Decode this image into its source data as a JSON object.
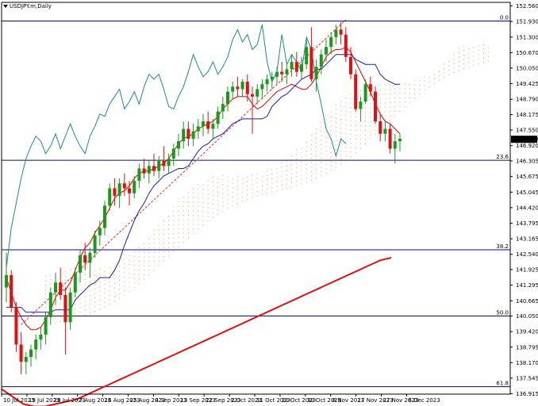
{
  "chart_data": {
    "type": "candlestick",
    "title": "USDJPY.m,Daily",
    "timeframe": "Daily",
    "symbol": "USDJPY.m",
    "ylim": [
      136.9,
      152.7
    ],
    "y_ticks": [
      "152.560",
      "151.930",
      "151.300",
      "150.670",
      "150.050",
      "149.425",
      "148.790",
      "148.175",
      "147.550",
      "146.920",
      "146.305",
      "145.675",
      "145.045",
      "144.420",
      "143.795",
      "143.165",
      "142.540",
      "141.925",
      "141.295",
      "140.665",
      "140.050",
      "139.420",
      "138.795",
      "138.170",
      "137.545",
      "136.915"
    ],
    "current_price": "147.178",
    "current_price_value": 147.178,
    "x_ticks": [
      "10 Jul 2023",
      "19 Jul 2023",
      "28 Jul 2023",
      "7 Aug 2023",
      "16 Aug 2023",
      "25 Aug 2023",
      "4 Sep 2023",
      "13 Sep 2023",
      "22 Sep 2023",
      "2 Oct 2023",
      "11 Oct 2023",
      "20 Oct 2023",
      "30 Oct 2023",
      "8 Nov 2023",
      "17 Nov 2023",
      "27 Nov 2023",
      "6 Dec 2023"
    ],
    "fibonacci": [
      {
        "label": "0.0",
        "value": 151.95
      },
      {
        "label": "23.6",
        "value": 146.33
      },
      {
        "label": "38.2",
        "value": 142.72
      },
      {
        "label": "50.0",
        "value": 140.05
      },
      {
        "label": "61.8",
        "value": 137.2
      }
    ],
    "candles": [
      [
        141.2,
        142.6,
        140.6,
        141.7
      ],
      [
        141.7,
        141.9,
        140.2,
        140.4
      ],
      [
        140.4,
        140.6,
        138.6,
        138.9
      ],
      [
        138.9,
        139.4,
        137.7,
        138.2
      ],
      [
        138.2,
        138.6,
        137.7,
        138.4
      ],
      [
        138.4,
        138.9,
        138.0,
        138.7
      ],
      [
        138.7,
        139.3,
        138.3,
        139.1
      ],
      [
        139.1,
        139.6,
        138.7,
        139.3
      ],
      [
        139.3,
        140.2,
        138.9,
        140.0
      ],
      [
        140.0,
        141.2,
        139.7,
        141.0
      ],
      [
        141.0,
        141.8,
        140.5,
        141.4
      ],
      [
        141.4,
        142.0,
        140.7,
        140.9
      ],
      [
        140.9,
        141.2,
        138.5,
        139.8
      ],
      [
        139.8,
        141.2,
        139.5,
        141.0
      ],
      [
        141.0,
        142.0,
        140.8,
        141.8
      ],
      [
        141.8,
        142.7,
        141.4,
        142.5
      ],
      [
        142.5,
        143.0,
        141.9,
        142.2
      ],
      [
        142.2,
        142.8,
        141.6,
        142.6
      ],
      [
        142.6,
        143.5,
        142.4,
        143.3
      ],
      [
        143.3,
        143.9,
        142.9,
        143.6
      ],
      [
        143.6,
        144.7,
        143.3,
        144.5
      ],
      [
        144.5,
        145.4,
        144.3,
        145.2
      ],
      [
        145.2,
        145.6,
        144.5,
        144.9
      ],
      [
        144.9,
        145.6,
        144.4,
        145.4
      ],
      [
        145.4,
        145.8,
        144.9,
        145.2
      ],
      [
        145.2,
        145.5,
        144.5,
        145.0
      ],
      [
        145.0,
        145.7,
        144.8,
        145.5
      ],
      [
        145.5,
        146.2,
        145.2,
        146.0
      ],
      [
        146.0,
        146.4,
        145.6,
        145.8
      ],
      [
        145.8,
        146.3,
        145.4,
        146.1
      ],
      [
        146.1,
        146.6,
        145.7,
        145.9
      ],
      [
        145.9,
        146.5,
        145.6,
        146.3
      ],
      [
        146.3,
        146.9,
        145.9,
        146.1
      ],
      [
        146.1,
        146.6,
        145.8,
        146.4
      ],
      [
        146.4,
        147.0,
        146.1,
        146.8
      ],
      [
        146.8,
        147.4,
        146.5,
        147.1
      ],
      [
        147.1,
        147.9,
        146.8,
        147.6
      ],
      [
        147.6,
        147.9,
        146.9,
        147.2
      ],
      [
        147.2,
        147.8,
        146.9,
        147.5
      ],
      [
        147.5,
        148.0,
        147.2,
        147.7
      ],
      [
        147.7,
        148.2,
        147.3,
        147.9
      ],
      [
        147.9,
        148.3,
        147.4,
        147.6
      ],
      [
        147.6,
        148.0,
        147.2,
        147.8
      ],
      [
        147.8,
        148.5,
        147.6,
        148.3
      ],
      [
        148.3,
        148.9,
        148.0,
        148.6
      ],
      [
        148.6,
        149.3,
        148.3,
        149.1
      ],
      [
        149.1,
        149.5,
        148.8,
        149.3
      ],
      [
        149.3,
        149.7,
        148.9,
        149.2
      ],
      [
        149.2,
        149.6,
        148.9,
        149.5
      ],
      [
        149.5,
        149.8,
        148.7,
        149.0
      ],
      [
        149.0,
        149.3,
        147.4,
        148.9
      ],
      [
        148.9,
        149.4,
        148.6,
        149.2
      ],
      [
        149.2,
        149.6,
        148.8,
        149.4
      ],
      [
        149.4,
        149.8,
        149.1,
        149.6
      ],
      [
        149.6,
        149.9,
        149.2,
        149.7
      ],
      [
        149.7,
        150.1,
        149.4,
        149.9
      ],
      [
        149.9,
        150.3,
        149.5,
        149.8
      ],
      [
        149.8,
        150.2,
        149.4,
        150.0
      ],
      [
        150.0,
        150.6,
        149.7,
        150.3
      ],
      [
        150.3,
        150.7,
        149.7,
        149.9
      ],
      [
        149.9,
        150.5,
        149.6,
        150.2
      ],
      [
        150.2,
        151.2,
        150.0,
        150.9
      ],
      [
        150.9,
        151.7,
        149.5,
        149.6
      ],
      [
        149.6,
        150.4,
        149.1,
        150.1
      ],
      [
        150.1,
        150.8,
        149.8,
        150.6
      ],
      [
        150.6,
        151.2,
        150.3,
        150.9
      ],
      [
        150.9,
        151.5,
        150.6,
        151.3
      ],
      [
        151.3,
        151.8,
        151.0,
        151.6
      ],
      [
        151.6,
        151.9,
        151.0,
        151.4
      ],
      [
        151.4,
        151.7,
        150.3,
        150.5
      ],
      [
        150.5,
        150.9,
        149.6,
        149.8
      ],
      [
        149.8,
        150.0,
        148.3,
        148.4
      ],
      [
        148.4,
        148.9,
        147.9,
        148.7
      ],
      [
        148.7,
        149.6,
        148.6,
        149.4
      ],
      [
        149.4,
        149.7,
        148.9,
        149.1
      ],
      [
        149.1,
        149.3,
        147.8,
        147.9
      ],
      [
        147.9,
        148.2,
        147.1,
        147.4
      ],
      [
        147.4,
        147.9,
        147.1,
        147.6
      ],
      [
        147.6,
        147.8,
        146.6,
        146.8
      ],
      [
        146.8,
        147.4,
        146.2,
        147.1
      ],
      [
        147.1,
        147.4,
        146.7,
        147.2
      ]
    ],
    "series": [
      {
        "name": "Tenkan-sen",
        "color": "#e00000",
        "values": [
          141.6,
          141.0,
          140.4,
          140.0,
          139.7,
          139.5,
          139.5,
          139.6,
          139.9,
          140.3,
          140.8,
          141.1,
          141.1,
          141.4,
          141.9,
          142.4,
          142.8,
          143.0,
          143.4,
          143.7,
          144.0,
          144.4,
          144.8,
          145.0,
          145.1,
          145.3,
          145.6,
          145.8,
          145.9,
          145.9,
          146.0,
          146.1,
          146.2,
          146.4,
          146.7,
          147.0,
          147.2,
          147.3,
          147.4,
          147.6,
          147.7,
          147.8,
          147.9,
          148.1,
          148.4,
          148.6,
          148.8,
          148.9,
          148.9,
          148.9,
          148.6,
          148.4,
          148.5,
          148.7,
          148.9,
          149.1,
          149.2,
          149.3,
          149.4,
          149.3,
          149.2,
          149.2,
          149.4,
          149.7,
          150.1,
          150.5,
          150.7,
          150.8,
          150.8,
          150.9,
          150.7,
          150.3,
          149.9,
          149.5,
          149.1,
          148.6,
          148.2,
          147.9,
          147.8,
          147.6,
          147.4
        ]
      },
      {
        "name": "Kijun-sen",
        "color": "#1a1ab0",
        "values": [
          140.4,
          140.4,
          140.4,
          140.4,
          140.2,
          140.2,
          140.2,
          140.2,
          140.2,
          140.2,
          140.3,
          140.3,
          140.3,
          140.3,
          140.7,
          140.9,
          141.1,
          141.3,
          141.4,
          141.6,
          141.6,
          141.6,
          141.9,
          142.3,
          142.9,
          143.4,
          143.9,
          144.3,
          144.6,
          145.0,
          145.3,
          145.5,
          145.7,
          145.8,
          145.9,
          146.0,
          146.0,
          146.1,
          146.4,
          146.7,
          146.9,
          147.0,
          147.2,
          147.3,
          147.4,
          147.6,
          147.8,
          147.9,
          148.0,
          148.0,
          148.0,
          148.0,
          148.0,
          148.1,
          148.5,
          148.7,
          148.9,
          149.0,
          149.2,
          149.4,
          149.6,
          149.7,
          149.8,
          150.0,
          150.0,
          150.2,
          150.4,
          150.6,
          150.6,
          150.6,
          150.6,
          150.4,
          150.3,
          150.2,
          150.2,
          150.2,
          149.8,
          149.6,
          149.5,
          149.4,
          149.4
        ]
      },
      {
        "name": "Chikou span",
        "color": "#1a8a8a",
        "values": [
          142.0,
          143.6,
          144.6,
          145.6,
          146.4,
          146.9,
          147.3,
          147.1,
          146.6,
          146.9,
          147.4,
          146.8,
          147.3,
          147.8,
          147.3,
          146.9,
          146.6,
          147.3,
          147.7,
          148.2,
          148.1,
          148.6,
          148.9,
          149.2,
          148.4,
          148.7,
          149.1,
          148.6,
          149.3,
          149.8,
          149.6,
          149.8,
          149.2,
          148.5,
          148.4,
          148.9,
          149.3,
          149.9,
          150.6,
          150.1,
          149.7,
          149.9,
          150.3,
          149.8,
          150.1,
          150.5,
          151.2,
          151.6,
          151.1,
          151.4,
          150.8,
          151.0,
          151.8,
          150.3,
          149.5,
          149.9,
          151.4,
          150.2,
          150.6,
          150.3,
          149.9,
          151.3,
          150.8,
          149.5,
          148.6,
          147.6,
          147.2,
          146.5,
          147.2,
          147.0
        ]
      },
      {
        "name": "MA",
        "color": "#e01010",
        "values": [
          137.1,
          136.8,
          136.5,
          136.4,
          136.4,
          136.5,
          136.6,
          136.7,
          136.9,
          137.1,
          137.3,
          137.5,
          137.7,
          137.9,
          138.1,
          138.3,
          138.5,
          138.7,
          138.9,
          139.1,
          139.3,
          139.5,
          139.7,
          139.9,
          140.1,
          140.3,
          140.5,
          140.7,
          140.9,
          141.1,
          141.3,
          141.5,
          141.7,
          141.9,
          142.1,
          142.3,
          142.4
        ]
      }
    ],
    "legend_position": "none",
    "grid": false
  }
}
